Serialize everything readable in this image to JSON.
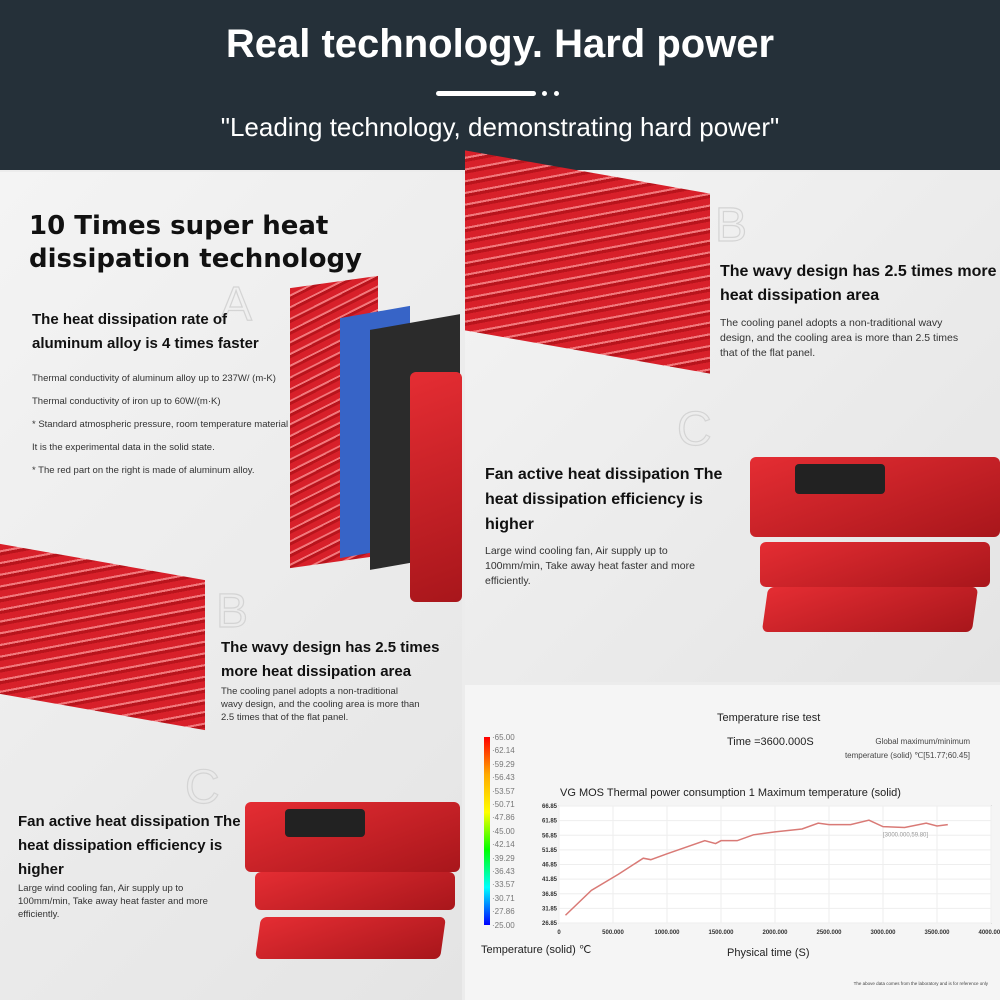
{
  "header": {
    "title": "Real technology. Hard power",
    "subtitle": "\"Leading technology, demonstrating hard power\""
  },
  "section_a": {
    "heading": "10 Times super heat dissipation technology",
    "letter": "A",
    "subheading": "The heat dissipation rate of aluminum alloy is 4 times faster",
    "notes": [
      "Thermal conductivity of aluminum alloy up to 237W/ (m-K)",
      "Thermal conductivity of iron up to 60W/(m·K)",
      "* Standard atmospheric pressure, room temperature material",
      "It is the experimental data in the solid state.",
      "* The red part on the right is made of aluminum alloy."
    ]
  },
  "section_b": {
    "letter": "B",
    "heading": "The wavy design has 2.5 times more heat dissipation area",
    "body": "The cooling panel adopts a non-traditional wavy design, and the cooling area is more than 2.5 times that of the flat panel."
  },
  "section_c": {
    "letter": "C",
    "heading": "Fan active heat dissipation The heat dissipation efficiency is higher",
    "body": "Large wind cooling fan, Air supply up to 100mm/min, Take away heat faster and more efficiently."
  },
  "test": {
    "title": "Temperature rise test",
    "time": "Time =3600.000S",
    "global_label": "Global maximum/minimum",
    "global_value": "temperature (solid) ℃[51.77;60.45]",
    "scale_label": "Temperature (solid) ℃",
    "scale_ticks": [
      "65.00",
      "62.14",
      "59.29",
      "56.43",
      "53.57",
      "50.71",
      "47.86",
      "45.00",
      "42.14",
      "39.29",
      "36.43",
      "33.57",
      "30.71",
      "27.86",
      "25.00"
    ],
    "disclaimer": "The above data comes from the laboratory and is for reference only"
  },
  "chart_data": {
    "type": "line",
    "title": "VG MOS Thermal power consumption 1 Maximum temperature (solid)",
    "xlabel": "Physical time (S)",
    "ylabel": "",
    "xlim": [
      0,
      4000
    ],
    "ylim": [
      26.85,
      66.85
    ],
    "grid": true,
    "xticks": [
      "0",
      "500.000",
      "1000.000",
      "1500.000",
      "2000.000",
      "2500.000",
      "3000.000",
      "3500.000",
      "4000.000"
    ],
    "yticks": [
      "66.85",
      "61.85",
      "56.85",
      "51.85",
      "46.85",
      "41.85",
      "36.85",
      "31.85",
      "26.85"
    ],
    "annotation": "[3000.000,59.80]",
    "line_color": "#d97a76",
    "x": [
      60,
      300,
      550,
      780,
      850,
      1000,
      1350,
      1450,
      1500,
      1650,
      1800,
      2000,
      2250,
      2400,
      2500,
      2700,
      2870,
      3000,
      3200,
      3400,
      3500,
      3600
    ],
    "y": [
      29.5,
      38,
      43.5,
      49,
      48.5,
      50.5,
      55,
      54,
      55,
      55,
      57,
      58,
      59,
      61,
      60.5,
      60.5,
      62,
      59.8,
      59.5,
      61,
      60,
      60.5
    ]
  }
}
